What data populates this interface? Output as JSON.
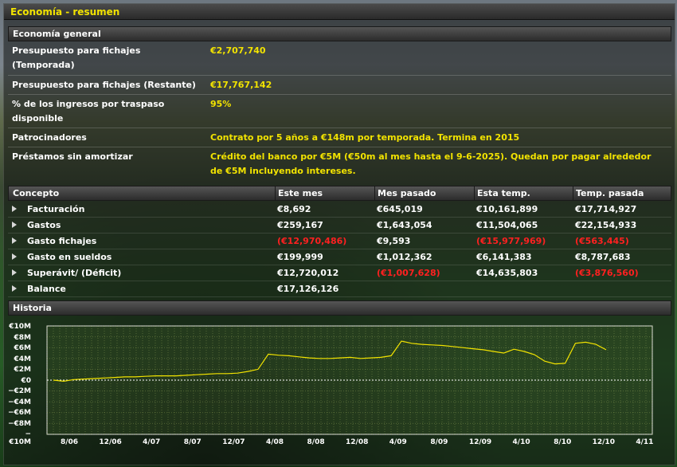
{
  "title": "Economía - resumen",
  "general": {
    "header": "Economía general",
    "rows": [
      {
        "label": "Presupuesto para fichajes (Temporada)",
        "value": "€2,707,740"
      },
      {
        "label": "Presupuesto para fichajes (Restante)",
        "value": "€17,767,142"
      },
      {
        "label": "% de los ingresos por traspaso disponible",
        "value": "95%"
      },
      {
        "label": "Patrocinadores",
        "value": "Contrato por 5 años a €148m por temporada. Termina en 2015"
      },
      {
        "label": "Préstamos sin amortizar",
        "value": "Crédito del banco por €5M (€50m al mes hasta el 9-6-2025). Quedan por pagar alrededor de €5M incluyendo intereses."
      }
    ]
  },
  "table": {
    "columns": [
      "Concepto",
      "Este mes",
      "Mes pasado",
      "Esta temp.",
      "Temp. pasada"
    ],
    "rows": [
      {
        "name": "Facturación",
        "cells": [
          "€8,692",
          "€645,019",
          "€10,161,899",
          "€17,714,927"
        ],
        "neg": [
          false,
          false,
          false,
          false
        ]
      },
      {
        "name": "Gastos",
        "cells": [
          "€259,167",
          "€1,643,054",
          "€11,504,065",
          "€22,154,933"
        ],
        "neg": [
          false,
          false,
          false,
          false
        ]
      },
      {
        "name": "Gasto fichajes",
        "cells": [
          "(€12,970,486)",
          "€9,593",
          "(€15,977,969)",
          "(€563,445)"
        ],
        "neg": [
          true,
          false,
          true,
          true
        ]
      },
      {
        "name": "Gasto en sueldos",
        "cells": [
          "€199,999",
          "€1,012,362",
          "€6,141,383",
          "€8,787,683"
        ],
        "neg": [
          false,
          false,
          false,
          false
        ]
      },
      {
        "name": "Superávit/ (Déficit)",
        "cells": [
          "€12,720,012",
          "(€1,007,628)",
          "€14,635,803",
          "(€3,876,560)"
        ],
        "neg": [
          false,
          true,
          false,
          true
        ]
      },
      {
        "name": "Balance",
        "cells": [
          "€17,126,126",
          "",
          "",
          ""
        ],
        "neg": [
          false,
          false,
          false,
          false
        ]
      }
    ]
  },
  "history": {
    "header": "Historia",
    "y_ticks": [
      "€10M",
      "€8M",
      "€6M",
      "€4M",
      "€2M",
      "€0",
      "−€2M",
      "−€4M",
      "−€6M",
      "−€8M",
      "−€10M"
    ],
    "x_ticks": [
      "8/06",
      "12/06",
      "4/07",
      "8/07",
      "12/07",
      "4/08",
      "8/08",
      "12/08",
      "4/09",
      "8/09",
      "12/09",
      "4/10",
      "8/10",
      "12/10",
      "4/11"
    ]
  },
  "chart_data": {
    "type": "line",
    "ylim": [
      -10,
      10
    ],
    "yunit": "€M",
    "x": [
      "6/06",
      "7/06",
      "8/06",
      "9/06",
      "10/06",
      "11/06",
      "12/06",
      "1/07",
      "2/07",
      "3/07",
      "4/07",
      "5/07",
      "6/07",
      "7/07",
      "8/07",
      "9/07",
      "10/07",
      "11/07",
      "12/07",
      "1/08",
      "2/08",
      "3/08",
      "4/08",
      "5/08",
      "6/08",
      "7/08",
      "8/08",
      "9/08",
      "10/08",
      "11/08",
      "12/08",
      "1/09",
      "2/09",
      "3/09",
      "4/09",
      "5/09",
      "6/09",
      "7/09",
      "8/09",
      "9/09",
      "10/09",
      "11/09",
      "12/09",
      "1/10",
      "2/10",
      "3/10",
      "4/10",
      "5/10",
      "6/10",
      "7/10",
      "8/10",
      "9/10",
      "10/10",
      "11/10",
      "12/10"
    ],
    "values": [
      0.0,
      -0.2,
      0.1,
      0.2,
      0.3,
      0.4,
      0.5,
      0.6,
      0.6,
      0.7,
      0.8,
      0.8,
      0.8,
      0.9,
      1.0,
      1.1,
      1.2,
      1.2,
      1.3,
      1.6,
      2.0,
      4.8,
      4.6,
      4.5,
      4.3,
      4.1,
      4.0,
      4.0,
      4.1,
      4.2,
      4.0,
      4.1,
      4.2,
      4.5,
      7.2,
      6.8,
      6.6,
      6.5,
      6.4,
      6.2,
      6.0,
      5.8,
      5.6,
      5.3,
      5.0,
      5.7,
      5.3,
      4.7,
      3.5,
      3.0,
      3.1,
      6.8,
      7.0,
      6.6,
      5.6
    ]
  },
  "colors": {
    "accent": "#f2e300",
    "negative": "#ff2020",
    "line": "#f2e300"
  }
}
